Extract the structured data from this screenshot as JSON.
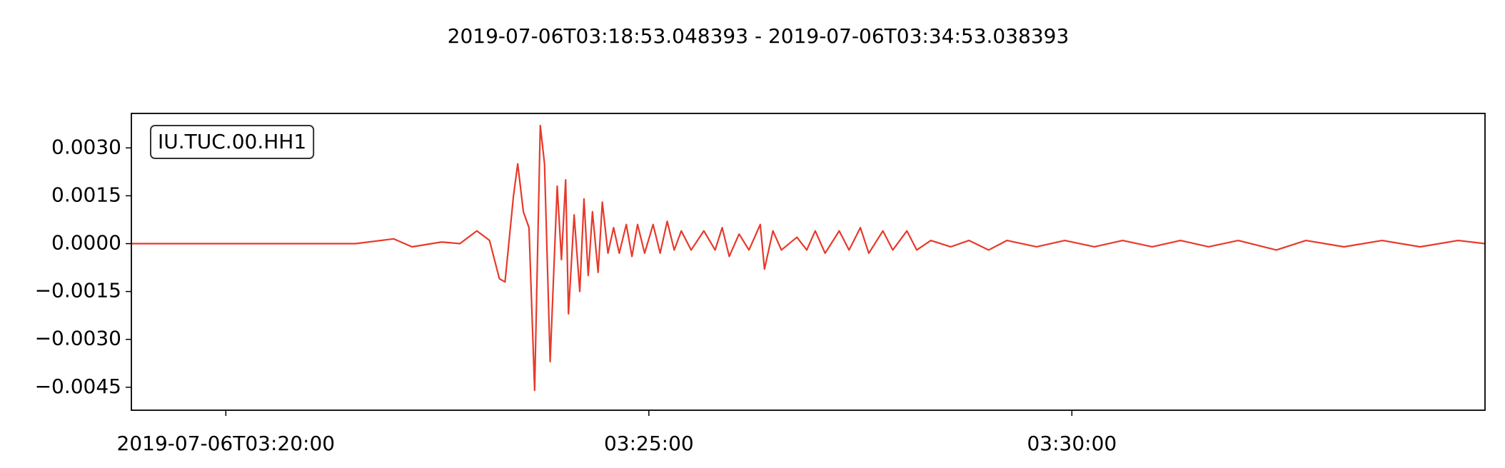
{
  "chart_data": {
    "type": "line",
    "title": "2019-07-06T03:18:53.048393  -  2019-07-06T03:34:53.038393",
    "xlim": [
      "03:18:53",
      "03:34:53"
    ],
    "xticks": [
      {
        "value": "03:20:00",
        "label": "2019-07-06T03:20:00"
      },
      "03:25:00",
      "03:30:00"
    ],
    "ylim": [
      -0.00522,
      0.00408
    ],
    "yticks": [
      {
        "value": 0.003,
        "label": "0.0030"
      },
      {
        "value": 0.0015,
        "label": "0.0015"
      },
      {
        "value": 0,
        "label": "0.0000"
      },
      {
        "value": -0.0015,
        "label": "−0.0015"
      },
      {
        "value": -0.003,
        "label": "−0.0030"
      },
      {
        "value": -0.0045,
        "label": "−0.0045"
      }
    ],
    "grid": false,
    "x": [
      "03:18:53",
      "03:21:32",
      "03:21:59",
      "03:22:12",
      "03:22:33",
      "03:22:46",
      "03:22:58",
      "03:23:07",
      "03:23:14",
      "03:23:18",
      "03:23:24",
      "03:23:27",
      "03:23:31",
      "03:23:35",
      "03:23:39",
      "03:23:43",
      "03:23:46",
      "03:23:50",
      "03:23:55",
      "03:23:58",
      "03:24:01",
      "03:24:03",
      "03:24:07",
      "03:24:11",
      "03:24:14",
      "03:24:17",
      "03:24:20",
      "03:24:24",
      "03:24:27",
      "03:24:31",
      "03:24:35",
      "03:24:39",
      "03:24:44",
      "03:24:48",
      "03:24:52",
      "03:24:57",
      "03:25:03",
      "03:25:08",
      "03:25:13",
      "03:25:18",
      "03:25:23",
      "03:25:30",
      "03:25:39",
      "03:25:47",
      "03:25:52",
      "03:25:57",
      "03:26:04",
      "03:26:11",
      "03:26:19",
      "03:26:22",
      "03:26:28",
      "03:26:34",
      "03:26:45",
      "03:26:52",
      "03:26:58",
      "03:27:05",
      "03:27:15",
      "03:27:22",
      "03:27:30",
      "03:27:36",
      "03:27:46",
      "03:27:53",
      "03:28:03",
      "03:28:10",
      "03:28:20",
      "03:28:34",
      "03:28:47",
      "03:29:01",
      "03:29:14",
      "03:29:35",
      "03:29:55",
      "03:30:16",
      "03:30:36",
      "03:30:57",
      "03:31:17",
      "03:31:37",
      "03:31:58",
      "03:32:25",
      "03:32:46",
      "03:33:13",
      "03:33:40",
      "03:34:07",
      "03:34:34",
      "03:34:53"
    ],
    "series": [
      {
        "name": "IU.TUC.00.HH1",
        "color": "#e8392a",
        "values": [
          0,
          0,
          0.00015,
          -0.0001,
          5e-05,
          0,
          0.0004,
          0.0001,
          -0.0011,
          -0.0012,
          0.0015,
          0.0025,
          0.001,
          0.0005,
          -0.0046,
          0.0037,
          0.0025,
          -0.0037,
          0.0018,
          -0.0005,
          0.002,
          -0.0022,
          0.0009,
          -0.0015,
          0.0014,
          -0.001,
          0.001,
          -0.0009,
          0.0013,
          -0.0003,
          0.0005,
          -0.0003,
          0.0006,
          -0.0004,
          0.0006,
          -0.0003,
          0.0006,
          -0.0003,
          0.0007,
          -0.0002,
          0.0004,
          -0.0002,
          0.0004,
          -0.0002,
          0.0005,
          -0.0004,
          0.0003,
          -0.0002,
          0.0006,
          -0.0008,
          0.0004,
          -0.0002,
          0.0002,
          -0.0002,
          0.0004,
          -0.0003,
          0.0004,
          -0.0002,
          0.0005,
          -0.0003,
          0.0004,
          -0.0002,
          0.0004,
          -0.0002,
          0.0001,
          -0.0001,
          0.0001,
          -0.0002,
          0.0001,
          -0.0001,
          0.0001,
          -0.0001,
          0.0001,
          -0.0001,
          0.0001,
          -0.0001,
          0.0001,
          -0.0002,
          0.0001,
          -0.0001,
          0.0001,
          -0.0001,
          0.0001,
          0
        ]
      }
    ]
  }
}
